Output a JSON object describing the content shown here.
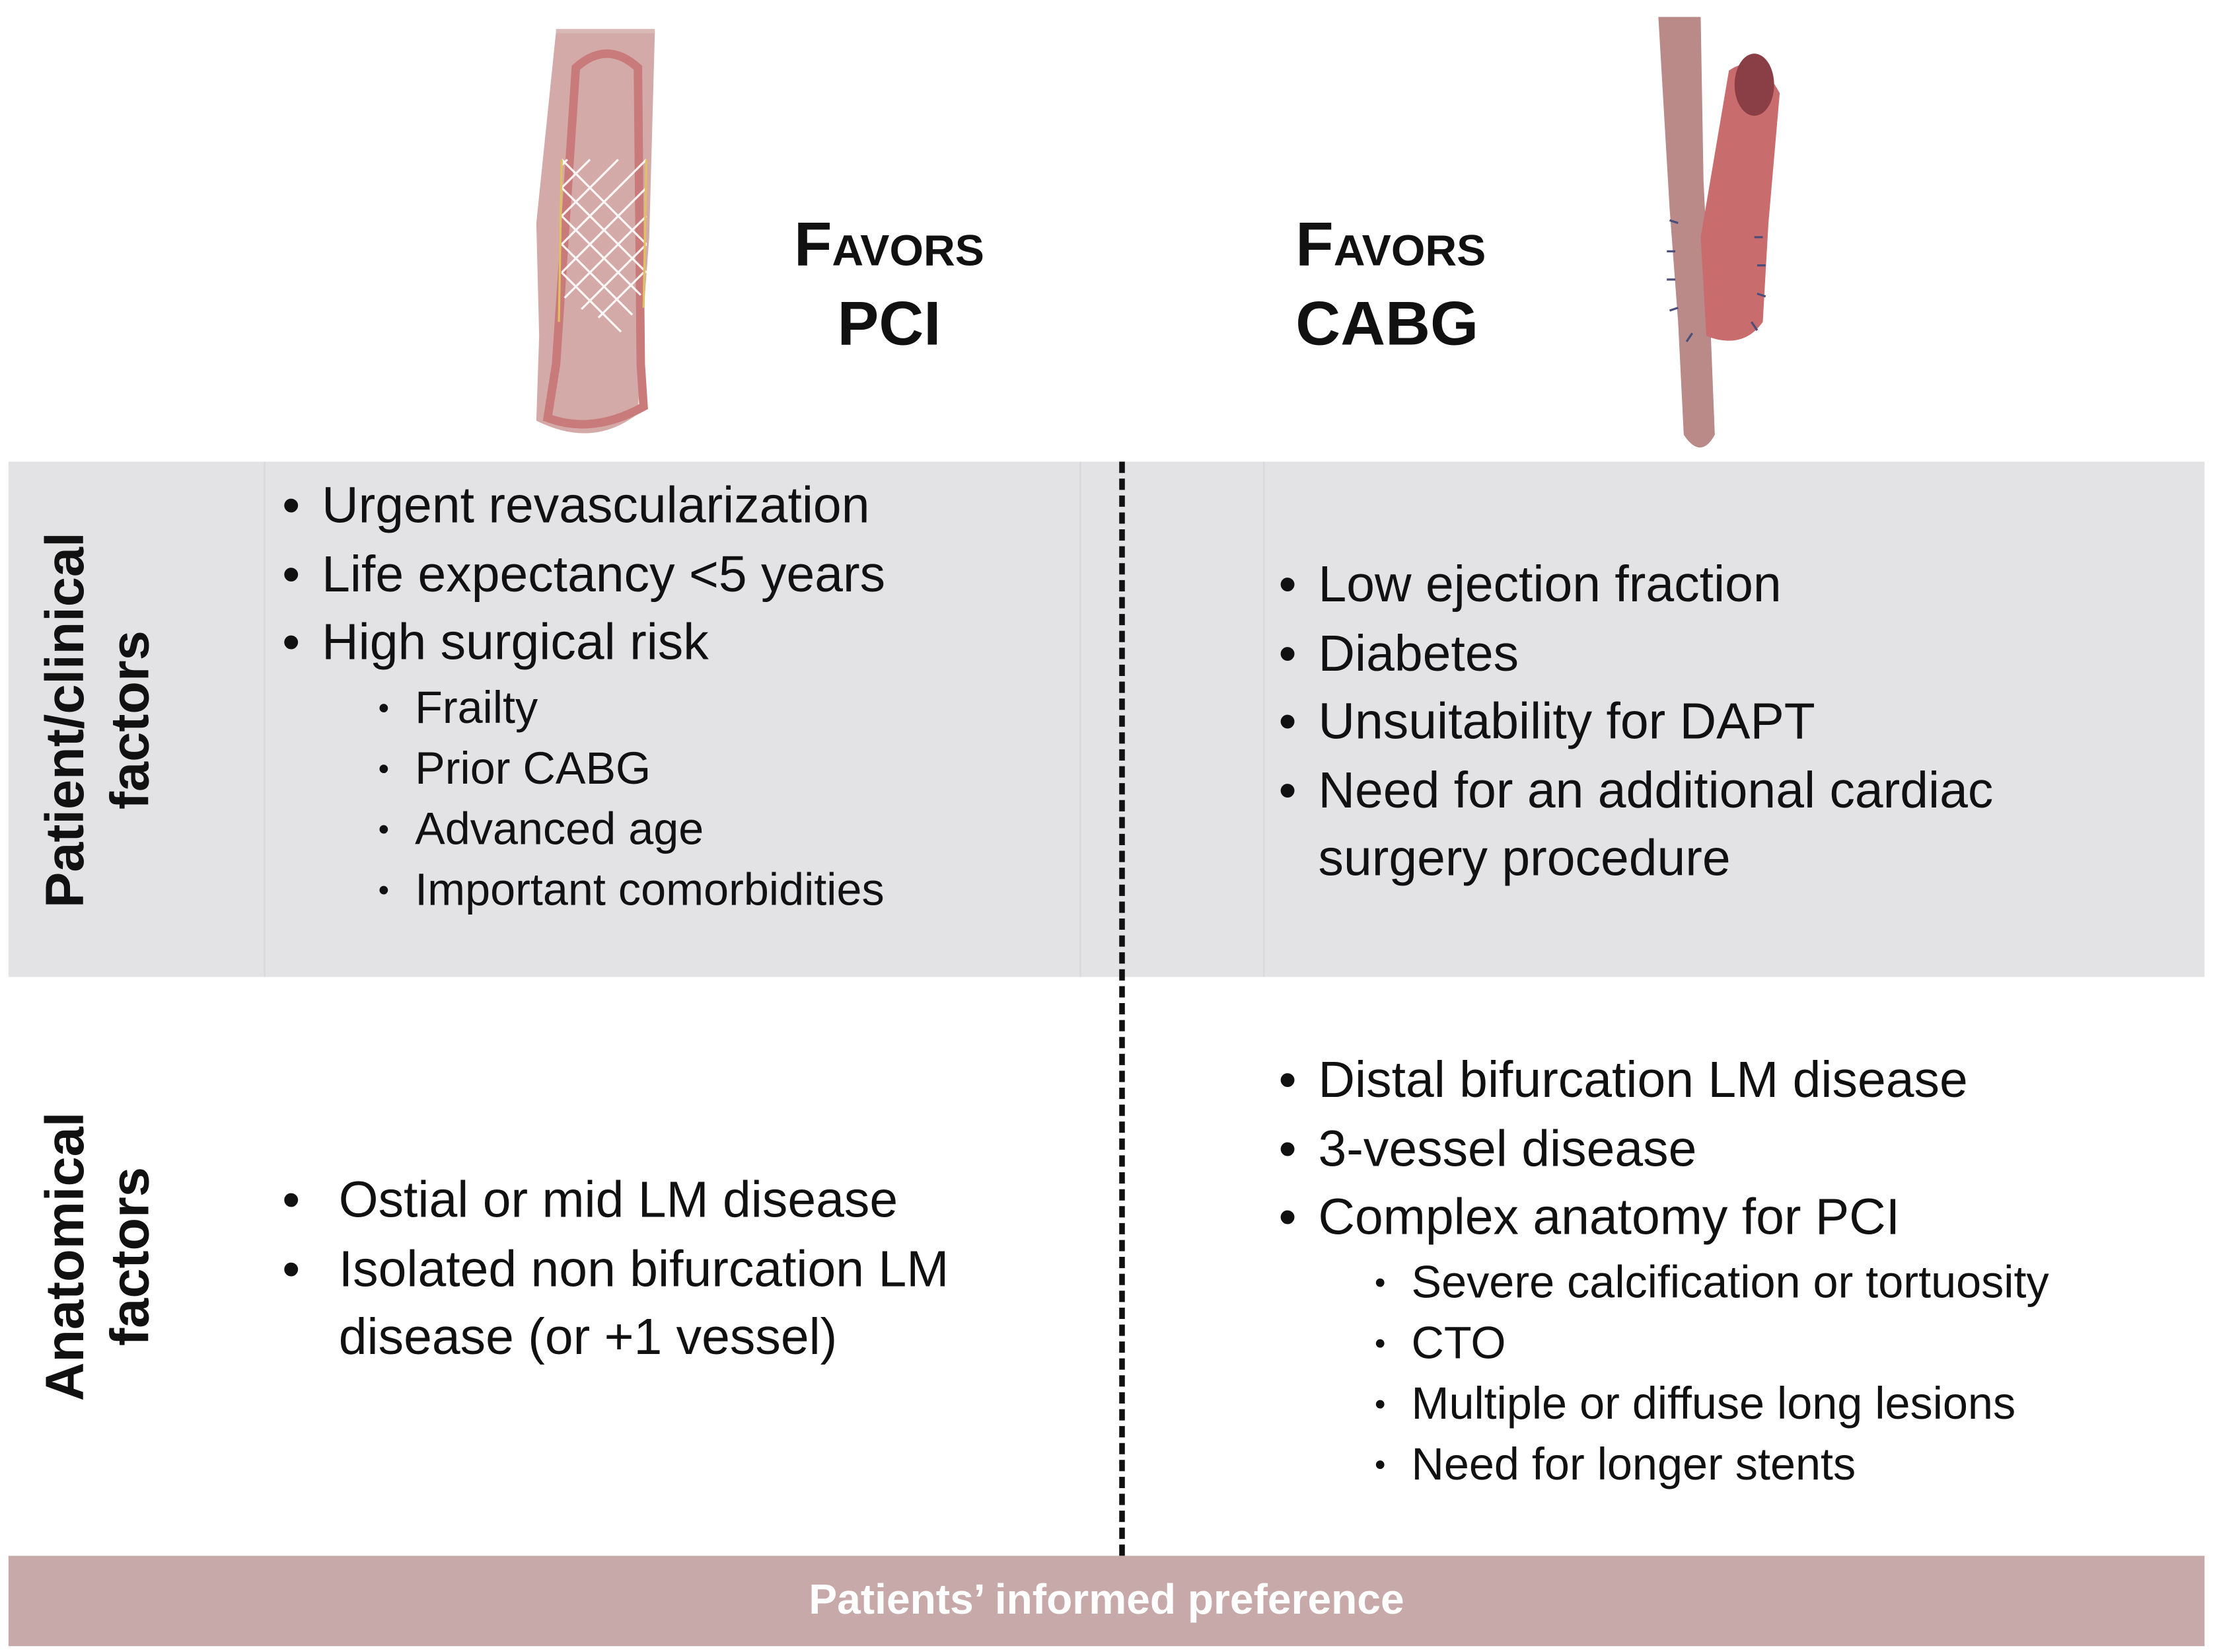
{
  "columns": {
    "pci": {
      "heading_line1": "Favors",
      "heading_line2": "PCI",
      "icon": "stent-vessel-icon"
    },
    "cabg": {
      "heading_line1": "Favors",
      "heading_line2": "CABG",
      "icon": "bypass-graft-icon"
    }
  },
  "rows": [
    {
      "label": [
        "Patient/clinical",
        "factors"
      ],
      "pci": [
        {
          "text": "Urgent revascularization",
          "level": 1
        },
        {
          "text": "Life expectancy <5 years",
          "level": 1
        },
        {
          "text": "High surgical risk",
          "level": 1
        },
        {
          "text": "Frailty",
          "level": 2
        },
        {
          "text": "Prior CABG",
          "level": 2
        },
        {
          "text": "Advanced age",
          "level": 2
        },
        {
          "text": "Important comorbidities",
          "level": 2
        }
      ],
      "cabg": [
        {
          "text": "Low ejection fraction",
          "level": 1
        },
        {
          "text": "Diabetes",
          "level": 1
        },
        {
          "text": "Unsuitability for DAPT",
          "level": 1
        },
        {
          "text": "Need for an additional cardiac",
          "level": 1
        },
        {
          "text": "surgery procedure",
          "level": 0
        }
      ]
    },
    {
      "label": [
        "Anatomical",
        "factors"
      ],
      "pci": [
        {
          "text": "Ostial or mid LM disease",
          "level": 1
        },
        {
          "text": "Isolated non bifurcation LM",
          "level": 1
        },
        {
          "text": "disease (or +1 vessel)",
          "level": 0
        }
      ],
      "cabg": [
        {
          "text": "Distal bifurcation LM disease",
          "level": 1
        },
        {
          "text": "3-vessel disease",
          "level": 1
        },
        {
          "text": "Complex anatomy for PCI",
          "level": 1
        },
        {
          "text": "Severe calcification or tortuosity",
          "level": 2
        },
        {
          "text": "CTO",
          "level": 2
        },
        {
          "text": "Multiple or diffuse long lesions",
          "level": 2
        },
        {
          "text": "Need for longer stents",
          "level": 2
        }
      ]
    }
  ],
  "footer": "Patients’ informed preference",
  "colors": {
    "band": "#e3e3e6",
    "footer": "#c6a9a8",
    "vessel": "#c98888"
  }
}
